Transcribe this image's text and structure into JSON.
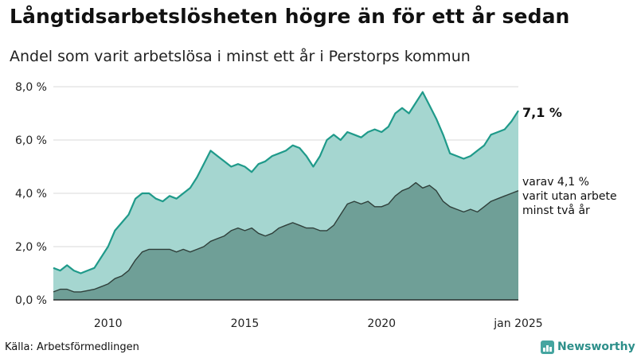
{
  "title": "Långtidsarbetslösheten högre än för ett år sedan",
  "subtitle": "Andel som varit arbetslösa i minst ett år i Perstorps kommun",
  "source": "Källa: Arbetsförmedlingen",
  "brand": "Newsworthy",
  "colors": {
    "total_fill": "#a5d6d0",
    "total_line": "#1f9a8a",
    "long_fill": "#6f9f97",
    "long_line": "#2f3f3a",
    "grid": "#d9d9d9"
  },
  "chart_data": {
    "type": "area",
    "x_tick_labels": [
      "2010",
      "2015",
      "2020",
      "jan 2025"
    ],
    "y_tick_labels": [
      "0,0 %",
      "2,0 %",
      "4,0 %",
      "6,0 %",
      "8,0 %"
    ],
    "ylim": [
      0,
      8
    ],
    "xlim": [
      "2008-01",
      "2025-01"
    ],
    "grid": "horizontal",
    "series": [
      {
        "key": "total",
        "values": [
          [
            "2008-01",
            1.2
          ],
          [
            "2008-04",
            1.1
          ],
          [
            "2008-07",
            1.3
          ],
          [
            "2008-10",
            1.1
          ],
          [
            "2009-01",
            1.0
          ],
          [
            "2009-04",
            1.1
          ],
          [
            "2009-07",
            1.2
          ],
          [
            "2009-10",
            1.6
          ],
          [
            "2010-01",
            2.0
          ],
          [
            "2010-04",
            2.6
          ],
          [
            "2010-07",
            2.9
          ],
          [
            "2010-10",
            3.2
          ],
          [
            "2011-01",
            3.8
          ],
          [
            "2011-04",
            4.0
          ],
          [
            "2011-07",
            4.0
          ],
          [
            "2011-10",
            3.8
          ],
          [
            "2012-01",
            3.7
          ],
          [
            "2012-04",
            3.9
          ],
          [
            "2012-07",
            3.8
          ],
          [
            "2012-10",
            4.0
          ],
          [
            "2013-01",
            4.2
          ],
          [
            "2013-04",
            4.6
          ],
          [
            "2013-07",
            5.1
          ],
          [
            "2013-10",
            5.6
          ],
          [
            "2014-01",
            5.4
          ],
          [
            "2014-04",
            5.2
          ],
          [
            "2014-07",
            5.0
          ],
          [
            "2014-10",
            5.1
          ],
          [
            "2015-01",
            5.0
          ],
          [
            "2015-04",
            4.8
          ],
          [
            "2015-07",
            5.1
          ],
          [
            "2015-10",
            5.2
          ],
          [
            "2016-01",
            5.4
          ],
          [
            "2016-04",
            5.5
          ],
          [
            "2016-07",
            5.6
          ],
          [
            "2016-10",
            5.8
          ],
          [
            "2017-01",
            5.7
          ],
          [
            "2017-04",
            5.4
          ],
          [
            "2017-07",
            5.0
          ],
          [
            "2017-10",
            5.4
          ],
          [
            "2018-01",
            6.0
          ],
          [
            "2018-04",
            6.2
          ],
          [
            "2018-07",
            6.0
          ],
          [
            "2018-10",
            6.3
          ],
          [
            "2019-01",
            6.2
          ],
          [
            "2019-04",
            6.1
          ],
          [
            "2019-07",
            6.3
          ],
          [
            "2019-10",
            6.4
          ],
          [
            "2020-01",
            6.3
          ],
          [
            "2020-04",
            6.5
          ],
          [
            "2020-07",
            7.0
          ],
          [
            "2020-10",
            7.2
          ],
          [
            "2021-01",
            7.0
          ],
          [
            "2021-04",
            7.4
          ],
          [
            "2021-07",
            7.8
          ],
          [
            "2021-10",
            7.3
          ],
          [
            "2022-01",
            6.8
          ],
          [
            "2022-04",
            6.2
          ],
          [
            "2022-07",
            5.5
          ],
          [
            "2022-10",
            5.4
          ],
          [
            "2023-01",
            5.3
          ],
          [
            "2023-04",
            5.4
          ],
          [
            "2023-07",
            5.6
          ],
          [
            "2023-10",
            5.8
          ],
          [
            "2024-01",
            6.2
          ],
          [
            "2024-04",
            6.3
          ],
          [
            "2024-07",
            6.4
          ],
          [
            "2024-10",
            6.7
          ],
          [
            "2025-01",
            7.1
          ]
        ]
      },
      {
        "key": "long",
        "values": [
          [
            "2008-01",
            0.3
          ],
          [
            "2008-04",
            0.4
          ],
          [
            "2008-07",
            0.4
          ],
          [
            "2008-10",
            0.3
          ],
          [
            "2009-01",
            0.3
          ],
          [
            "2009-04",
            0.35
          ],
          [
            "2009-07",
            0.4
          ],
          [
            "2009-10",
            0.5
          ],
          [
            "2010-01",
            0.6
          ],
          [
            "2010-04",
            0.8
          ],
          [
            "2010-07",
            0.9
          ],
          [
            "2010-10",
            1.1
          ],
          [
            "2011-01",
            1.5
          ],
          [
            "2011-04",
            1.8
          ],
          [
            "2011-07",
            1.9
          ],
          [
            "2011-10",
            1.9
          ],
          [
            "2012-01",
            1.9
          ],
          [
            "2012-04",
            1.9
          ],
          [
            "2012-07",
            1.8
          ],
          [
            "2012-10",
            1.9
          ],
          [
            "2013-01",
            1.8
          ],
          [
            "2013-04",
            1.9
          ],
          [
            "2013-07",
            2.0
          ],
          [
            "2013-10",
            2.2
          ],
          [
            "2014-01",
            2.3
          ],
          [
            "2014-04",
            2.4
          ],
          [
            "2014-07",
            2.6
          ],
          [
            "2014-10",
            2.7
          ],
          [
            "2015-01",
            2.6
          ],
          [
            "2015-04",
            2.7
          ],
          [
            "2015-07",
            2.5
          ],
          [
            "2015-10",
            2.4
          ],
          [
            "2016-01",
            2.5
          ],
          [
            "2016-04",
            2.7
          ],
          [
            "2016-07",
            2.8
          ],
          [
            "2016-10",
            2.9
          ],
          [
            "2017-01",
            2.8
          ],
          [
            "2017-04",
            2.7
          ],
          [
            "2017-07",
            2.7
          ],
          [
            "2017-10",
            2.6
          ],
          [
            "2018-01",
            2.6
          ],
          [
            "2018-04",
            2.8
          ],
          [
            "2018-07",
            3.2
          ],
          [
            "2018-10",
            3.6
          ],
          [
            "2019-01",
            3.7
          ],
          [
            "2019-04",
            3.6
          ],
          [
            "2019-07",
            3.7
          ],
          [
            "2019-10",
            3.5
          ],
          [
            "2020-01",
            3.5
          ],
          [
            "2020-04",
            3.6
          ],
          [
            "2020-07",
            3.9
          ],
          [
            "2020-10",
            4.1
          ],
          [
            "2021-01",
            4.2
          ],
          [
            "2021-04",
            4.4
          ],
          [
            "2021-07",
            4.2
          ],
          [
            "2021-10",
            4.3
          ],
          [
            "2022-01",
            4.1
          ],
          [
            "2022-04",
            3.7
          ],
          [
            "2022-07",
            3.5
          ],
          [
            "2022-10",
            3.4
          ],
          [
            "2023-01",
            3.3
          ],
          [
            "2023-04",
            3.4
          ],
          [
            "2023-07",
            3.3
          ],
          [
            "2023-10",
            3.5
          ],
          [
            "2024-01",
            3.7
          ],
          [
            "2024-04",
            3.8
          ],
          [
            "2024-07",
            3.9
          ],
          [
            "2024-10",
            4.0
          ],
          [
            "2025-01",
            4.1
          ]
        ]
      }
    ],
    "annotations": {
      "total_label": "7,1 %",
      "long_label_lines": [
        "varav 4,1 %",
        "varit utan arbete",
        "minst två år"
      ]
    }
  }
}
